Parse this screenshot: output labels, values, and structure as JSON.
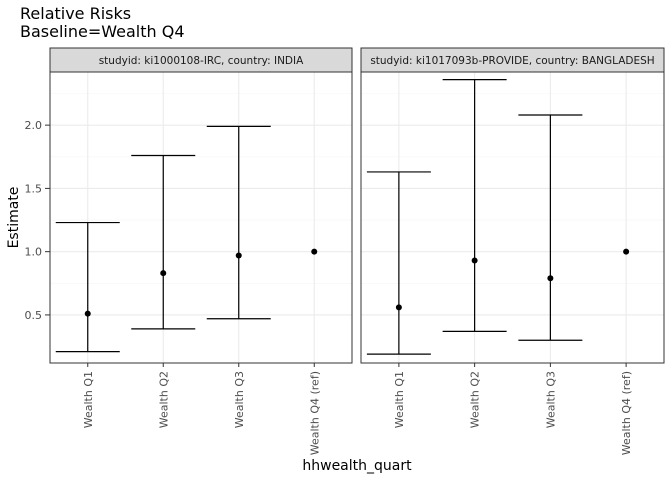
{
  "chart_data": {
    "type": "errorbar",
    "title": "Relative Risks",
    "subtitle": "Baseline=Wealth Q4",
    "xlabel": "hhwealth_quart",
    "ylabel": "Estimate",
    "categories": [
      "Wealth Q1",
      "Wealth Q2",
      "Wealth Q3",
      "Wealth Q4 (ref)"
    ],
    "ylim": [
      0.12,
      2.42
    ],
    "yticks": [
      0.5,
      1.0,
      1.5,
      2.0
    ],
    "ytick_labels": [
      "0.5",
      "1.0",
      "1.5",
      "2.0"
    ],
    "grid": true,
    "panels": [
      {
        "label": "studyid: ki1000108-IRC, country: INDIA",
        "points": [
          {
            "category": "Wealth Q1",
            "estimate": 0.51,
            "lower": 0.21,
            "upper": 1.23
          },
          {
            "category": "Wealth Q2",
            "estimate": 0.83,
            "lower": 0.39,
            "upper": 1.76
          },
          {
            "category": "Wealth Q3",
            "estimate": 0.97,
            "lower": 0.47,
            "upper": 1.99
          },
          {
            "category": "Wealth Q4 (ref)",
            "estimate": 1.0,
            "lower": null,
            "upper": null
          }
        ]
      },
      {
        "label": "studyid: ki1017093b-PROVIDE, country: BANGLADESH",
        "points": [
          {
            "category": "Wealth Q1",
            "estimate": 0.56,
            "lower": 0.19,
            "upper": 1.63
          },
          {
            "category": "Wealth Q2",
            "estimate": 0.93,
            "lower": 0.37,
            "upper": 2.36
          },
          {
            "category": "Wealth Q3",
            "estimate": 0.79,
            "lower": 0.3,
            "upper": 2.08
          },
          {
            "category": "Wealth Q4 (ref)",
            "estimate": 1.0,
            "lower": null,
            "upper": null
          }
        ]
      }
    ],
    "colors": {
      "strip_fill": "#d9d9d9",
      "panel_border": "#333333",
      "grid_major": "#ebebeb",
      "grid_minor": "#f5f5f5",
      "marks": "#000000",
      "tick_text": "#4d4d4d"
    }
  }
}
